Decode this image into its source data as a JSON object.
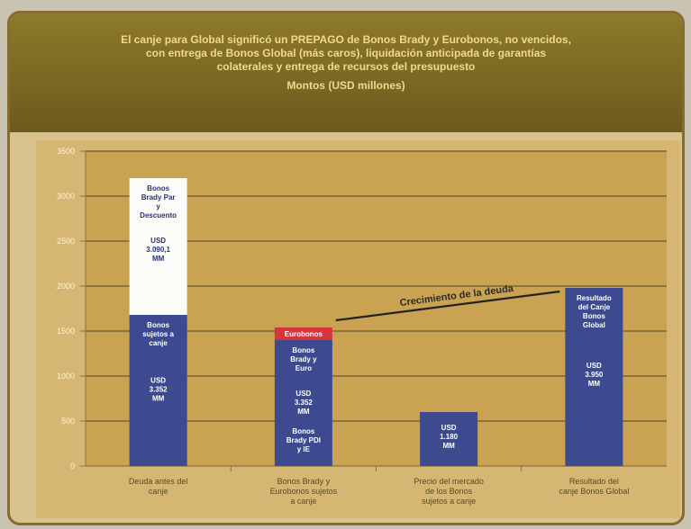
{
  "title": "El canje para Global significó un PREPAGO de Bonos Brady y Eurobonos, no vencidos, con entrega de Bonos Global (más caros), liquidación anticipada de garantías colaterales y entrega de recursos del presupuesto",
  "subtitle": "Montos (USD millones)",
  "colors": {
    "bar_blue": "#3d4a8f",
    "bar_white": "#fbfbf7",
    "bar_red": "#d8343c",
    "plot_bg": "#c9a352",
    "grid": "#7a6432",
    "header": "#7a6824",
    "title_text": "#f2d98c"
  },
  "chart_data": {
    "type": "bar",
    "categories": [
      "Deuda antes del canje",
      "Bonos Brady y Eurobonos sujetos a canje",
      "Precio del mercado de los Bonos sujetos a canje",
      "Resultado del canje Bonos Global"
    ],
    "yticks": [
      "0",
      "500",
      "1000",
      "1500",
      "2000",
      "2500",
      "3000",
      "3500"
    ],
    "ylim": [
      0,
      3500
    ],
    "stacks": [
      {
        "category": "Deuda antes del canje",
        "segments": [
          {
            "label": "Bonos sujetos a canje",
            "value_label": "USD 3.352 MM",
            "value": 1680,
            "color": "blue"
          },
          {
            "label": "Bonos Brady Par y Descuento",
            "value_label": "USD 3.090,1 MM",
            "value": 1520,
            "color": "white"
          }
        ]
      },
      {
        "category": "Bonos Brady y Eurobonos sujetos a canje",
        "segments": [
          {
            "label": "Bonos Brady PDI y IE",
            "value_label": "",
            "value": 500,
            "color": "blue"
          },
          {
            "label": "Bonos Brady y Euro",
            "value_label": "USD 3.352 MM",
            "value": 900,
            "color": "blue"
          },
          {
            "label": "Eurobonos",
            "value_label": "",
            "value": 140,
            "color": "red"
          }
        ]
      },
      {
        "category": "Precio del mercado de los Bonos sujetos a canje",
        "segments": [
          {
            "label": "",
            "value_label": "USD 1.180 MM",
            "value": 600,
            "color": "blue"
          }
        ]
      },
      {
        "category": "Resultado del canje Bonos Global",
        "segments": [
          {
            "label": "Resultado del Canje Bonos Global",
            "value_label": "USD 3.950 MM",
            "value": 1980,
            "color": "blue"
          }
        ]
      }
    ],
    "annotation": "Crecimiento de la deuda",
    "grid": true
  }
}
